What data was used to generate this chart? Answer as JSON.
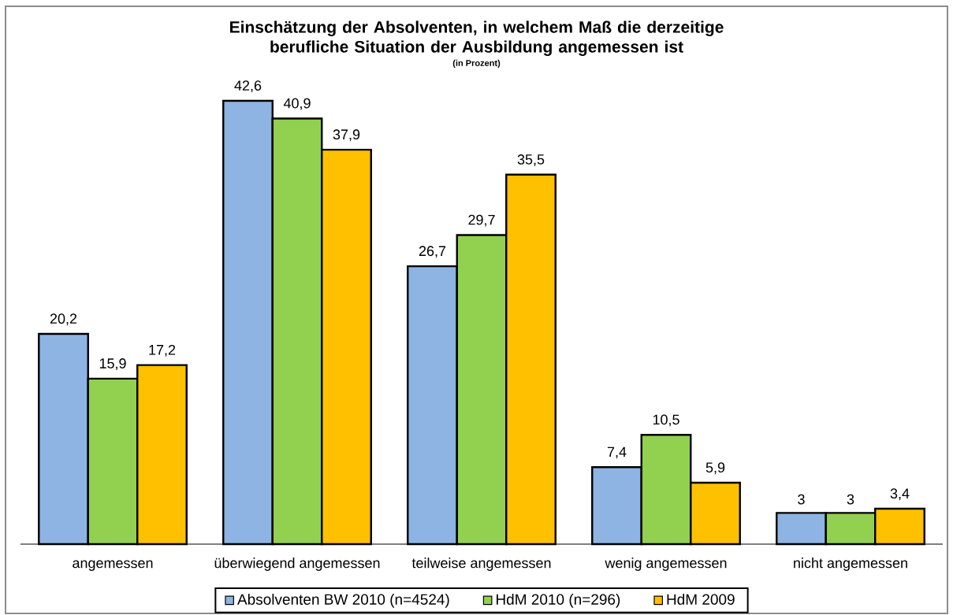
{
  "chart_data": {
    "type": "bar",
    "title": "Einschätzung der Absolventen, in welchem Maß die derzeitige berufliche Situation der Ausbildung angemessen ist",
    "subtitle": "(in Prozent)",
    "categories": [
      "angemessen",
      "überwiegend angemessen",
      "teilweise angemessen",
      "wenig angemessen",
      "nicht angemessen"
    ],
    "series": [
      {
        "name": "Absolventen BW 2010 (n=4524)",
        "color": "#8EB4E3",
        "values": [
          20.2,
          42.6,
          26.7,
          7.4,
          3
        ],
        "value_labels": [
          "20,2",
          "42,6",
          "26,7",
          "7,4",
          "3"
        ]
      },
      {
        "name": "HdM 2010 (n=296)",
        "color": "#92D050",
        "values": [
          15.9,
          40.9,
          29.7,
          10.5,
          3
        ],
        "value_labels": [
          "15,9",
          "40,9",
          "29,7",
          "10,5",
          "3"
        ]
      },
      {
        "name": "HdM 2009",
        "color": "#FFC000",
        "values": [
          17.2,
          37.9,
          35.5,
          5.9,
          3.4
        ],
        "value_labels": [
          "17,2",
          "37,9",
          "35,5",
          "5,9",
          "3,4"
        ]
      }
    ],
    "tick_labels": "x",
    "legend": "bottom"
  }
}
